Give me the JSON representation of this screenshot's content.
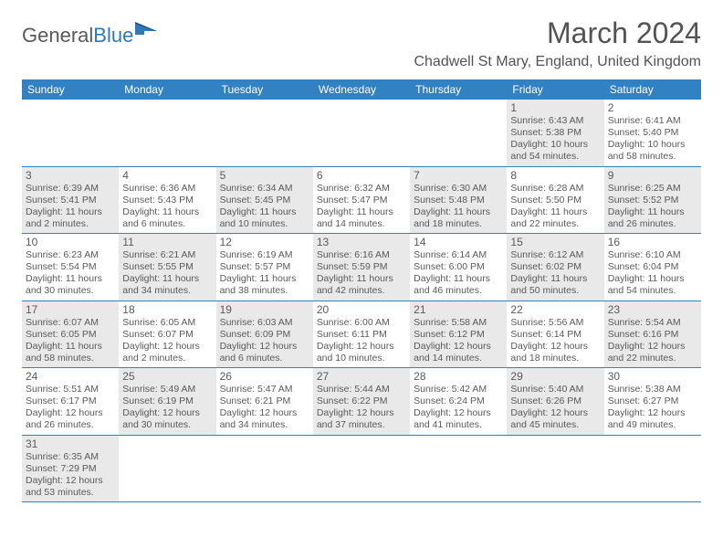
{
  "logo": {
    "part1": "General",
    "part2": "Blue"
  },
  "title": "March 2024",
  "location": "Chadwell St Mary, England, United Kingdom",
  "colors": {
    "header_bg": "#3181c3",
    "header_text": "#ffffff",
    "shaded_bg": "#e9e9e9",
    "text": "#5a5a5a",
    "border": "#3181c3"
  },
  "weekdays": [
    "Sunday",
    "Monday",
    "Tuesday",
    "Wednesday",
    "Thursday",
    "Friday",
    "Saturday"
  ],
  "weeks": [
    [
      {
        "empty": true
      },
      {
        "empty": true
      },
      {
        "empty": true
      },
      {
        "empty": true
      },
      {
        "empty": true
      },
      {
        "day": "1",
        "shaded": true,
        "sunrise": "Sunrise: 6:43 AM",
        "sunset": "Sunset: 5:38 PM",
        "daylight1": "Daylight: 10 hours",
        "daylight2": "and 54 minutes."
      },
      {
        "day": "2",
        "shaded": false,
        "sunrise": "Sunrise: 6:41 AM",
        "sunset": "Sunset: 5:40 PM",
        "daylight1": "Daylight: 10 hours",
        "daylight2": "and 58 minutes."
      }
    ],
    [
      {
        "day": "3",
        "shaded": true,
        "sunrise": "Sunrise: 6:39 AM",
        "sunset": "Sunset: 5:41 PM",
        "daylight1": "Daylight: 11 hours",
        "daylight2": "and 2 minutes."
      },
      {
        "day": "4",
        "shaded": false,
        "sunrise": "Sunrise: 6:36 AM",
        "sunset": "Sunset: 5:43 PM",
        "daylight1": "Daylight: 11 hours",
        "daylight2": "and 6 minutes."
      },
      {
        "day": "5",
        "shaded": true,
        "sunrise": "Sunrise: 6:34 AM",
        "sunset": "Sunset: 5:45 PM",
        "daylight1": "Daylight: 11 hours",
        "daylight2": "and 10 minutes."
      },
      {
        "day": "6",
        "shaded": false,
        "sunrise": "Sunrise: 6:32 AM",
        "sunset": "Sunset: 5:47 PM",
        "daylight1": "Daylight: 11 hours",
        "daylight2": "and 14 minutes."
      },
      {
        "day": "7",
        "shaded": true,
        "sunrise": "Sunrise: 6:30 AM",
        "sunset": "Sunset: 5:48 PM",
        "daylight1": "Daylight: 11 hours",
        "daylight2": "and 18 minutes."
      },
      {
        "day": "8",
        "shaded": false,
        "sunrise": "Sunrise: 6:28 AM",
        "sunset": "Sunset: 5:50 PM",
        "daylight1": "Daylight: 11 hours",
        "daylight2": "and 22 minutes."
      },
      {
        "day": "9",
        "shaded": true,
        "sunrise": "Sunrise: 6:25 AM",
        "sunset": "Sunset: 5:52 PM",
        "daylight1": "Daylight: 11 hours",
        "daylight2": "and 26 minutes."
      }
    ],
    [
      {
        "day": "10",
        "shaded": false,
        "sunrise": "Sunrise: 6:23 AM",
        "sunset": "Sunset: 5:54 PM",
        "daylight1": "Daylight: 11 hours",
        "daylight2": "and 30 minutes."
      },
      {
        "day": "11",
        "shaded": true,
        "sunrise": "Sunrise: 6:21 AM",
        "sunset": "Sunset: 5:55 PM",
        "daylight1": "Daylight: 11 hours",
        "daylight2": "and 34 minutes."
      },
      {
        "day": "12",
        "shaded": false,
        "sunrise": "Sunrise: 6:19 AM",
        "sunset": "Sunset: 5:57 PM",
        "daylight1": "Daylight: 11 hours",
        "daylight2": "and 38 minutes."
      },
      {
        "day": "13",
        "shaded": true,
        "sunrise": "Sunrise: 6:16 AM",
        "sunset": "Sunset: 5:59 PM",
        "daylight1": "Daylight: 11 hours",
        "daylight2": "and 42 minutes."
      },
      {
        "day": "14",
        "shaded": false,
        "sunrise": "Sunrise: 6:14 AM",
        "sunset": "Sunset: 6:00 PM",
        "daylight1": "Daylight: 11 hours",
        "daylight2": "and 46 minutes."
      },
      {
        "day": "15",
        "shaded": true,
        "sunrise": "Sunrise: 6:12 AM",
        "sunset": "Sunset: 6:02 PM",
        "daylight1": "Daylight: 11 hours",
        "daylight2": "and 50 minutes."
      },
      {
        "day": "16",
        "shaded": false,
        "sunrise": "Sunrise: 6:10 AM",
        "sunset": "Sunset: 6:04 PM",
        "daylight1": "Daylight: 11 hours",
        "daylight2": "and 54 minutes."
      }
    ],
    [
      {
        "day": "17",
        "shaded": true,
        "sunrise": "Sunrise: 6:07 AM",
        "sunset": "Sunset: 6:05 PM",
        "daylight1": "Daylight: 11 hours",
        "daylight2": "and 58 minutes."
      },
      {
        "day": "18",
        "shaded": false,
        "sunrise": "Sunrise: 6:05 AM",
        "sunset": "Sunset: 6:07 PM",
        "daylight1": "Daylight: 12 hours",
        "daylight2": "and 2 minutes."
      },
      {
        "day": "19",
        "shaded": true,
        "sunrise": "Sunrise: 6:03 AM",
        "sunset": "Sunset: 6:09 PM",
        "daylight1": "Daylight: 12 hours",
        "daylight2": "and 6 minutes."
      },
      {
        "day": "20",
        "shaded": false,
        "sunrise": "Sunrise: 6:00 AM",
        "sunset": "Sunset: 6:11 PM",
        "daylight1": "Daylight: 12 hours",
        "daylight2": "and 10 minutes."
      },
      {
        "day": "21",
        "shaded": true,
        "sunrise": "Sunrise: 5:58 AM",
        "sunset": "Sunset: 6:12 PM",
        "daylight1": "Daylight: 12 hours",
        "daylight2": "and 14 minutes."
      },
      {
        "day": "22",
        "shaded": false,
        "sunrise": "Sunrise: 5:56 AM",
        "sunset": "Sunset: 6:14 PM",
        "daylight1": "Daylight: 12 hours",
        "daylight2": "and 18 minutes."
      },
      {
        "day": "23",
        "shaded": true,
        "sunrise": "Sunrise: 5:54 AM",
        "sunset": "Sunset: 6:16 PM",
        "daylight1": "Daylight: 12 hours",
        "daylight2": "and 22 minutes."
      }
    ],
    [
      {
        "day": "24",
        "shaded": false,
        "sunrise": "Sunrise: 5:51 AM",
        "sunset": "Sunset: 6:17 PM",
        "daylight1": "Daylight: 12 hours",
        "daylight2": "and 26 minutes."
      },
      {
        "day": "25",
        "shaded": true,
        "sunrise": "Sunrise: 5:49 AM",
        "sunset": "Sunset: 6:19 PM",
        "daylight1": "Daylight: 12 hours",
        "daylight2": "and 30 minutes."
      },
      {
        "day": "26",
        "shaded": false,
        "sunrise": "Sunrise: 5:47 AM",
        "sunset": "Sunset: 6:21 PM",
        "daylight1": "Daylight: 12 hours",
        "daylight2": "and 34 minutes."
      },
      {
        "day": "27",
        "shaded": true,
        "sunrise": "Sunrise: 5:44 AM",
        "sunset": "Sunset: 6:22 PM",
        "daylight1": "Daylight: 12 hours",
        "daylight2": "and 37 minutes."
      },
      {
        "day": "28",
        "shaded": false,
        "sunrise": "Sunrise: 5:42 AM",
        "sunset": "Sunset: 6:24 PM",
        "daylight1": "Daylight: 12 hours",
        "daylight2": "and 41 minutes."
      },
      {
        "day": "29",
        "shaded": true,
        "sunrise": "Sunrise: 5:40 AM",
        "sunset": "Sunset: 6:26 PM",
        "daylight1": "Daylight: 12 hours",
        "daylight2": "and 45 minutes."
      },
      {
        "day": "30",
        "shaded": false,
        "sunrise": "Sunrise: 5:38 AM",
        "sunset": "Sunset: 6:27 PM",
        "daylight1": "Daylight: 12 hours",
        "daylight2": "and 49 minutes."
      }
    ],
    [
      {
        "day": "31",
        "shaded": true,
        "sunrise": "Sunrise: 6:35 AM",
        "sunset": "Sunset: 7:29 PM",
        "daylight1": "Daylight: 12 hours",
        "daylight2": "and 53 minutes."
      },
      {
        "empty": true
      },
      {
        "empty": true
      },
      {
        "empty": true
      },
      {
        "empty": true
      },
      {
        "empty": true
      },
      {
        "empty": true
      }
    ]
  ]
}
